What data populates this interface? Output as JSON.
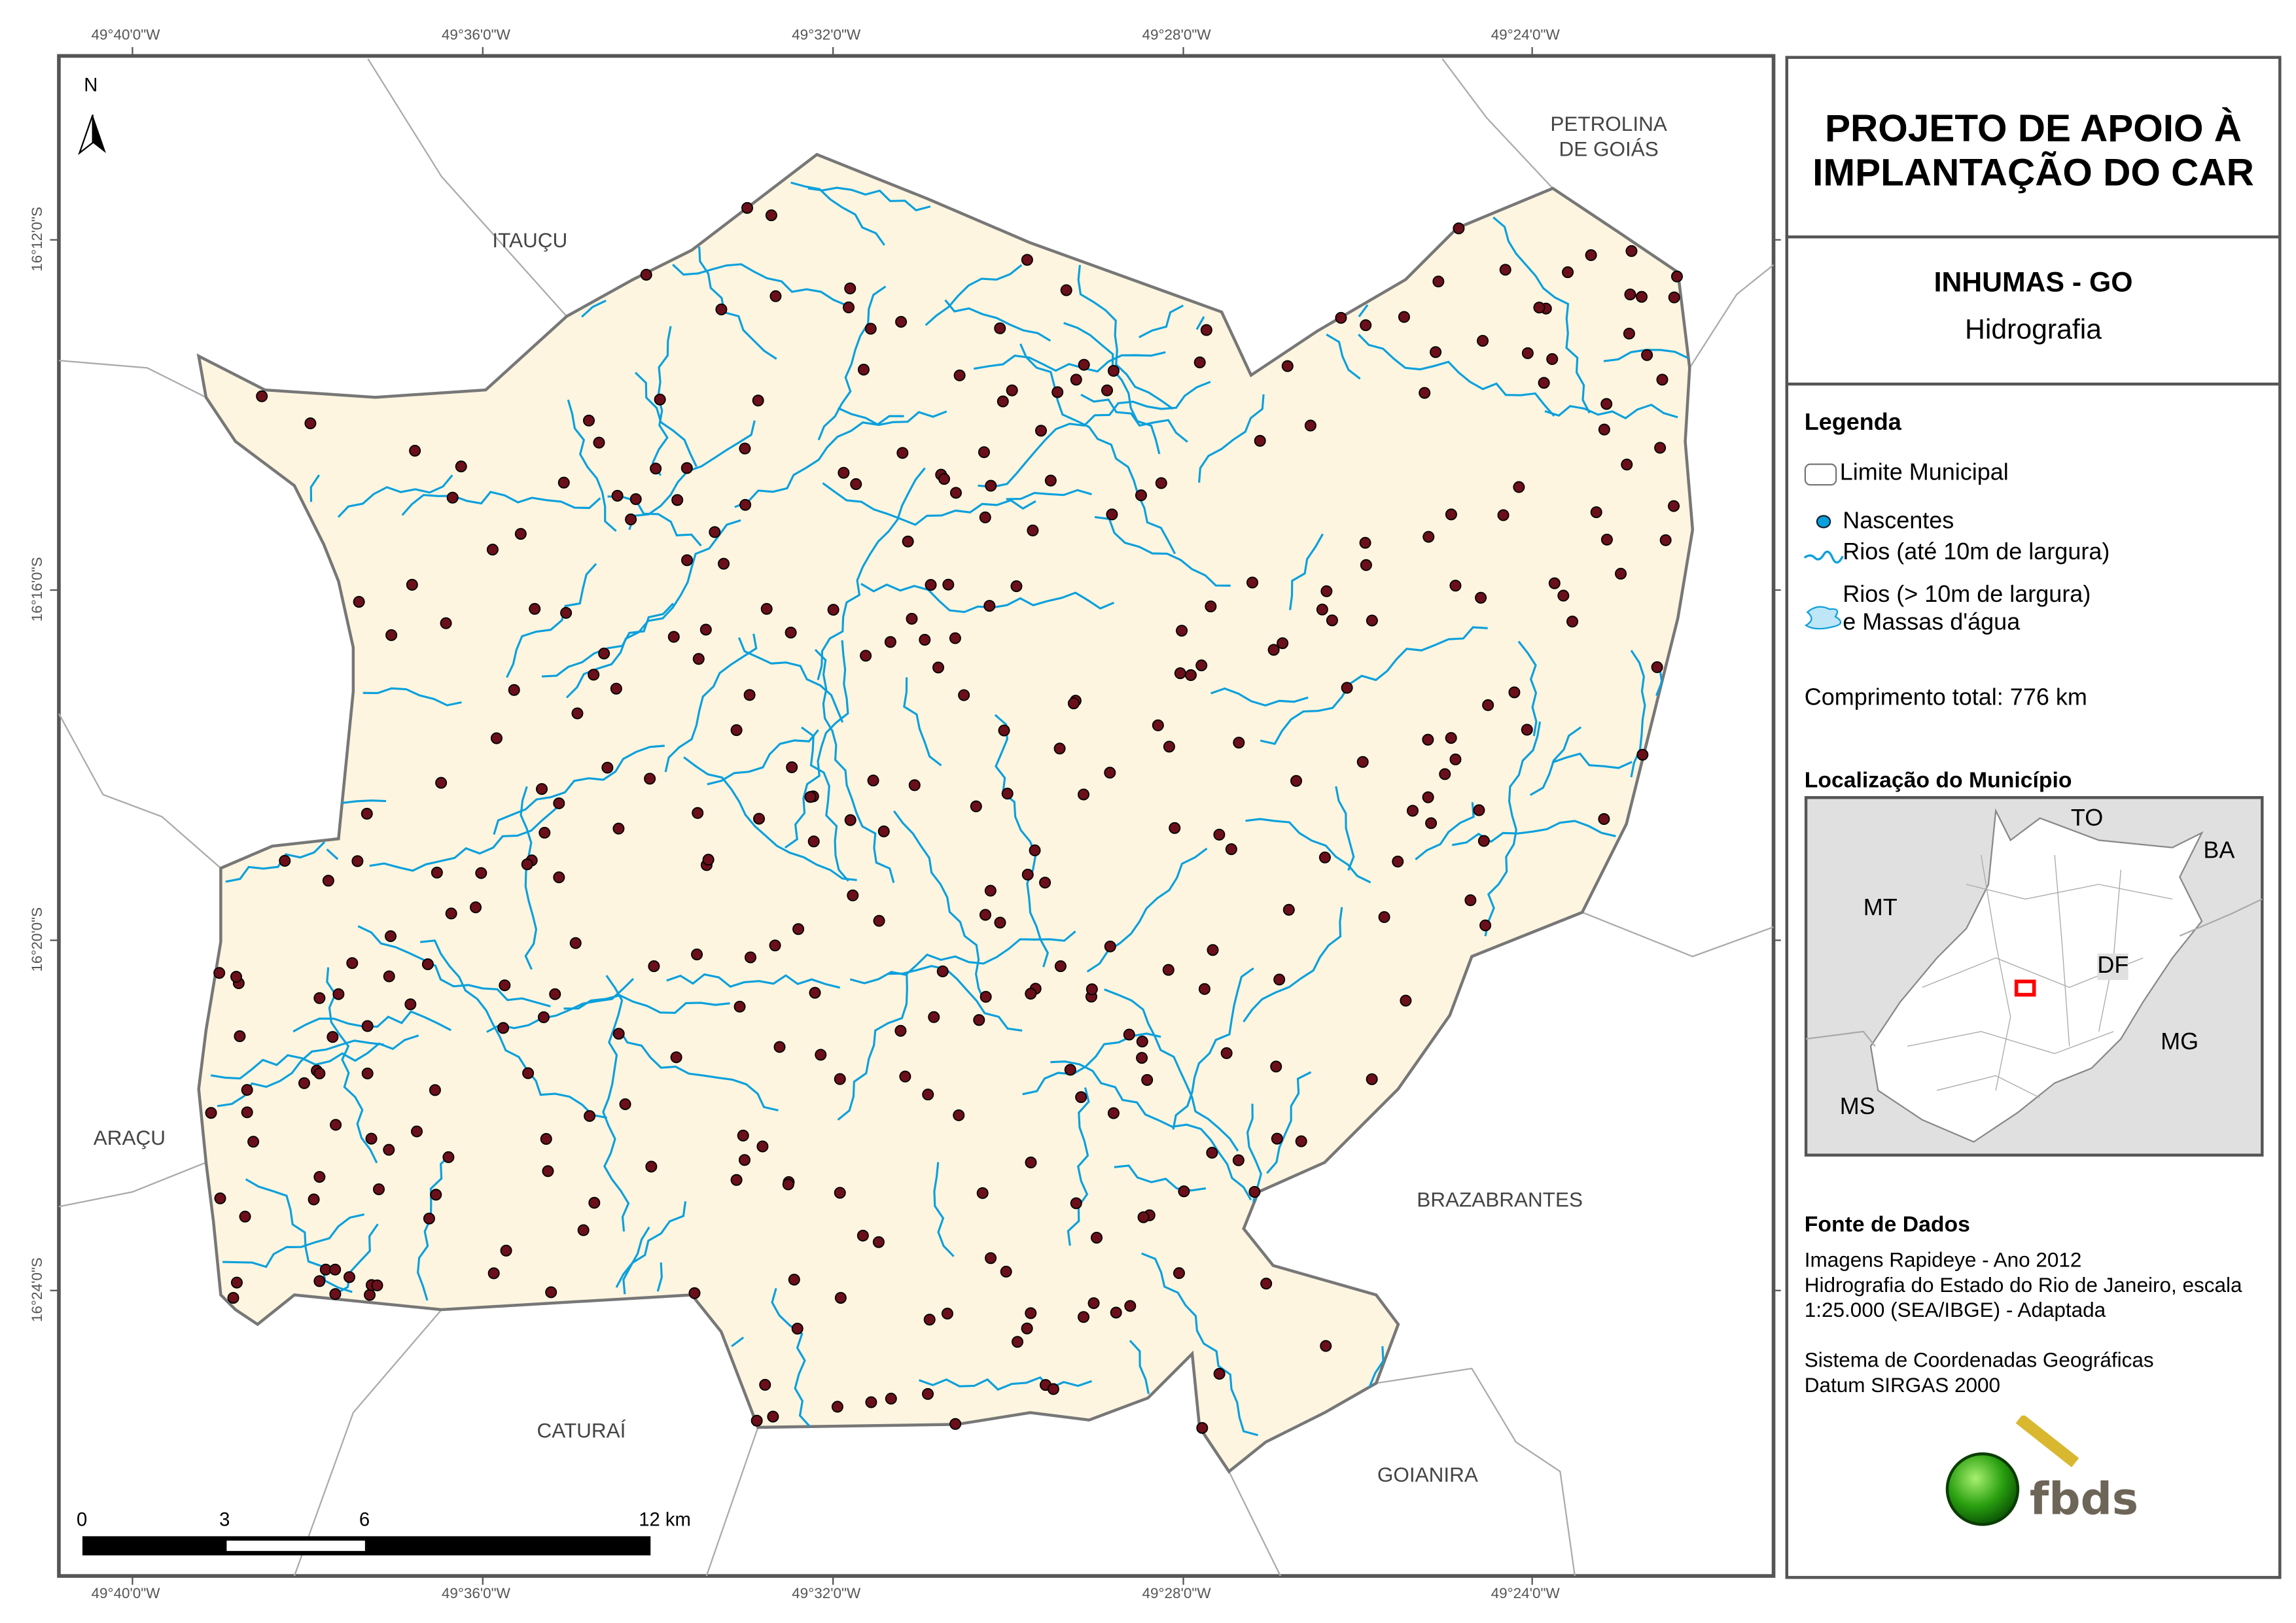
{
  "colors": {
    "municipality_fill": "#fdf5e0",
    "boundary": "#777777",
    "river": "#0aa0dc",
    "spring": "#6b0f1a",
    "neighbor_line": "#aaaaaa",
    "inset_bg": "#e0e0e0",
    "highlight": "#ff0000"
  },
  "grid": {
    "longitude_ticks": [
      "49°40'0\"W",
      "49°36'0\"W",
      "49°32'0\"W",
      "49°28'0\"W",
      "49°24'0\"W"
    ],
    "latitude_ticks": [
      "16°12'0\"S",
      "16°16'0\"S",
      "16°20'0\"S",
      "16°24'0\"S"
    ]
  },
  "map": {
    "north_label": "N",
    "neighbors": {
      "itaucu": "ITAUÇU",
      "petrolina_1": "PETROLINA",
      "petrolina_2": "DE GOIÁS",
      "aracu": "ARAÇU",
      "caturai": "CATURAÍ",
      "brazabrantes": "BRAZABRANTES",
      "goianira": "GOIANIRA"
    },
    "scale_bar": {
      "labels": [
        "0",
        "3",
        "6",
        "12 km"
      ]
    }
  },
  "panel": {
    "title_line1": "PROJETO DE APOIO À",
    "title_line2": "IMPLANTAÇÃO DO CAR",
    "municipality": "INHUMAS - GO",
    "theme": "Hidrografia",
    "legend": {
      "heading": "Legenda",
      "items": [
        "Limite Municipal",
        "Nascentes",
        "Rios (até 10m de largura)",
        "Rios (> 10m de largura)",
        "e Massas d'água"
      ],
      "total_length": "Comprimento total:  776 km"
    },
    "location": {
      "heading": "Localização do Município",
      "states": {
        "to": "TO",
        "ba": "BA",
        "mt": "MT",
        "df": "DF",
        "mg": "MG",
        "ms": "MS"
      }
    },
    "sources": {
      "heading": "Fonte de Dados",
      "lines": [
        "Imagens Rapideye - Ano 2012",
        "Hidrografia do Estado do Rio de Janeiro, escala",
        "1:25.000 (SEA/IBGE) - Adaptada",
        "Sistema de Coordenadas Geográficas",
        "Datum SIRGAS 2000"
      ]
    },
    "logo_text": "fbds"
  }
}
